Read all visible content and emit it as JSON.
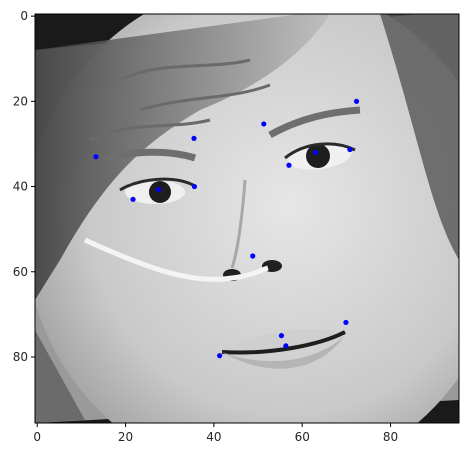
{
  "chart_data": {
    "type": "scatter",
    "background": "grayscale face image",
    "xlim": [
      -0.5,
      95.5
    ],
    "ylim": [
      95.5,
      -0.5
    ],
    "y_inverted": true,
    "xticks": [
      0,
      20,
      40,
      60,
      80
    ],
    "yticks": [
      0,
      20,
      40,
      60,
      80
    ],
    "xtick_labels": [
      "0",
      "20",
      "40",
      "60",
      "80"
    ],
    "ytick_labels": [
      "0",
      "20",
      "40",
      "60",
      "80"
    ],
    "grid": false,
    "marker_color": "#0000ff",
    "points": [
      {
        "x": 13.3,
        "y": 33.0
      },
      {
        "x": 21.7,
        "y": 43.0
      },
      {
        "x": 27.5,
        "y": 40.7
      },
      {
        "x": 35.6,
        "y": 40.0
      },
      {
        "x": 35.5,
        "y": 28.7
      },
      {
        "x": 51.3,
        "y": 25.3
      },
      {
        "x": 57.0,
        "y": 35.0
      },
      {
        "x": 63.0,
        "y": 32.0
      },
      {
        "x": 70.8,
        "y": 31.3
      },
      {
        "x": 72.3,
        "y": 20.0
      },
      {
        "x": 48.8,
        "y": 56.3
      },
      {
        "x": 41.3,
        "y": 79.7
      },
      {
        "x": 55.3,
        "y": 75.0
      },
      {
        "x": 56.3,
        "y": 77.4
      },
      {
        "x": 69.9,
        "y": 71.9
      }
    ]
  }
}
